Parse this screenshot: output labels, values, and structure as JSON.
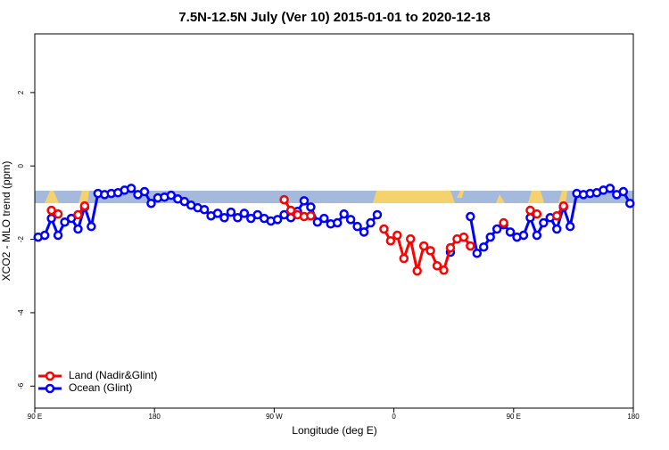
{
  "chart_data": {
    "type": "line",
    "title": "7.5N-12.5N July (Ver 10)   2015-01-01 to 2020-12-18",
    "xlabel": "Longitude (deg E)",
    "ylabel": "XCO2 - MLO trend (ppm)",
    "xlim": [
      90,
      540
    ],
    "ylim": [
      -6.6,
      3.6
    ],
    "xticks": [
      {
        "value": 90,
        "label": "90 E"
      },
      180,
      {
        "value": 270,
        "label": "90 W"
      },
      {
        "value": 360,
        "label": "0"
      },
      {
        "value": 450,
        "label": "90 E"
      },
      {
        "value": 540,
        "label": "180"
      }
    ],
    "yticks": [
      -6,
      -4,
      -2,
      0,
      2
    ],
    "legend": "bottom-left",
    "x": [
      92.5,
      97.5,
      102.5,
      107.5,
      112.5,
      117.5,
      122.5,
      127.5,
      132.5,
      137.5,
      142.5,
      147.5,
      152.5,
      157.5,
      162.5,
      167.5,
      172.5,
      177.5,
      182.5,
      187.5,
      192.5,
      197.5,
      202.5,
      207.5,
      212.5,
      217.5,
      222.5,
      227.5,
      232.5,
      237.5,
      242.5,
      247.5,
      252.5,
      257.5,
      262.5,
      267.5,
      272.5,
      277.5,
      282.5,
      287.5,
      292.5,
      297.5,
      302.5,
      307.5,
      312.5,
      317.5,
      322.5,
      327.5,
      332.5,
      337.5,
      342.5,
      347.5,
      352.5,
      357.5,
      362.5,
      367.5,
      372.5,
      377.5,
      382.5,
      387.5,
      392.5,
      397.5,
      402.5,
      407.5,
      412.5,
      417.5,
      422.5,
      427.5,
      432.5,
      437.5,
      442.5,
      447.5,
      452.5,
      457.5,
      462.5,
      467.5,
      472.5,
      477.5,
      482.5,
      487.5,
      492.5,
      497.5,
      502.5,
      507.5,
      512.5,
      517.5,
      522.5,
      527.5,
      532.5,
      537.5
    ],
    "series": [
      {
        "name": "Ocean (Glint)",
        "color": "#0000ff",
        "values": [
          -1.94,
          -1.89,
          -1.43,
          -1.89,
          -1.53,
          -1.43,
          -1.72,
          -1.12,
          -1.65,
          -0.75,
          -0.78,
          -0.75,
          -0.73,
          -0.66,
          -0.61,
          -0.78,
          -0.7,
          -1.02,
          -0.87,
          -0.85,
          -0.8,
          -0.9,
          -0.97,
          -1.07,
          -1.14,
          -1.19,
          -1.36,
          -1.29,
          -1.41,
          -1.26,
          -1.41,
          -1.29,
          -1.43,
          -1.33,
          -1.43,
          -1.5,
          -1.46,
          -1.33,
          -1.41,
          -1.24,
          -0.95,
          -1.12,
          -1.53,
          -1.43,
          -1.58,
          -1.55,
          -1.31,
          -1.46,
          -1.65,
          -1.8,
          -1.55,
          -1.33,
          null,
          null,
          null,
          null,
          null,
          null,
          null,
          null,
          null,
          null,
          -2.35,
          null,
          null,
          -1.38,
          -2.38,
          -2.21,
          -1.94,
          -1.72,
          -1.6,
          -1.8,
          -1.94,
          -1.89,
          -1.41,
          -1.89,
          -1.55,
          -1.41,
          -1.72,
          -1.12,
          -1.65,
          -0.75,
          -0.78,
          -0.75,
          -0.73,
          -0.66,
          -0.61,
          -0.78,
          -0.7,
          -1.02
        ]
      },
      {
        "name": "Land (Nadir&Glint)",
        "color": "#ff0000",
        "values": [
          null,
          null,
          -1.21,
          -1.31,
          null,
          null,
          -1.33,
          -1.09,
          null,
          null,
          null,
          null,
          null,
          null,
          null,
          null,
          null,
          null,
          null,
          null,
          null,
          null,
          null,
          null,
          null,
          null,
          null,
          null,
          null,
          null,
          null,
          null,
          null,
          null,
          null,
          null,
          null,
          -0.92,
          -1.21,
          -1.33,
          -1.38,
          -1.36,
          null,
          null,
          null,
          null,
          null,
          null,
          null,
          null,
          null,
          null,
          -1.72,
          -2.04,
          -1.89,
          -2.52,
          -1.99,
          -2.86,
          -2.18,
          -2.31,
          -2.72,
          -2.84,
          -2.23,
          -1.99,
          -1.94,
          -2.18,
          null,
          null,
          null,
          null,
          -1.55,
          null,
          null,
          null,
          -1.21,
          -1.31,
          null,
          null,
          -1.36,
          -1.09,
          null,
          null,
          null,
          null,
          null,
          null,
          null,
          null,
          null,
          null
        ]
      }
    ]
  }
}
